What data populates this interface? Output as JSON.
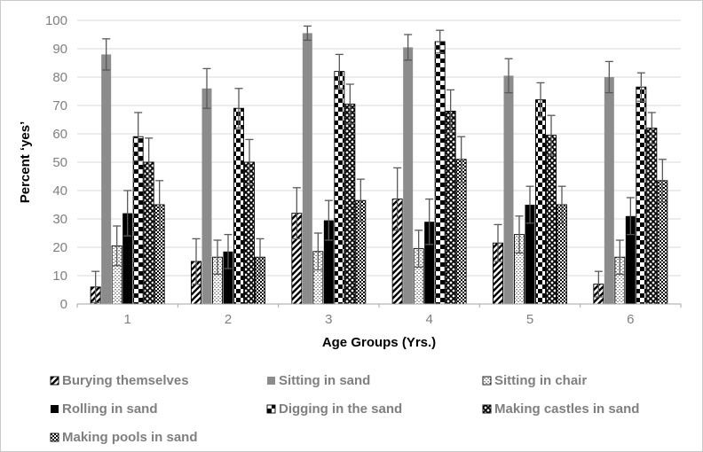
{
  "chart_data": {
    "type": "bar",
    "title": "",
    "xlabel": "Age Groups (Yrs.)",
    "ylabel": "Percent ‘yes’",
    "ylim": [
      0,
      100
    ],
    "yticks": [
      0,
      10,
      20,
      30,
      40,
      50,
      60,
      70,
      80,
      90,
      100
    ],
    "categories": [
      "1",
      "2",
      "3",
      "4",
      "5",
      "6"
    ],
    "grid": true,
    "error_bars": true,
    "legend_position": "bottom",
    "legend_columns": 3,
    "series": [
      {
        "name": "Burying themselves",
        "pattern": "wide-upward-diagonal",
        "values": [
          6,
          15,
          32,
          37,
          21.5,
          7
        ],
        "errors": [
          5.5,
          8,
          9,
          11,
          6.5,
          4.5
        ]
      },
      {
        "name": "Sitting in sand",
        "pattern": "solid",
        "color": "#8c8c8c",
        "values": [
          88,
          76,
          95.5,
          90.5,
          80.5,
          80
        ],
        "errors": [
          5.5,
          7,
          2.5,
          4.5,
          6,
          5.5
        ]
      },
      {
        "name": "Sitting in chair",
        "pattern": "sparse-dots",
        "values": [
          20.5,
          16.5,
          18.5,
          19.5,
          24.5,
          16.5
        ],
        "errors": [
          7,
          6,
          6.5,
          6.5,
          6.5,
          6
        ]
      },
      {
        "name": "Rolling in sand",
        "pattern": "solid",
        "color": "#000000",
        "values": [
          32,
          18.5,
          29.5,
          29,
          35,
          31
        ],
        "errors": [
          8,
          6,
          7,
          8,
          6.5,
          6.5
        ]
      },
      {
        "name": "Digging in the sand",
        "pattern": "checkerboard",
        "values": [
          59,
          69,
          82,
          92.5,
          72,
          76.5
        ],
        "errors": [
          8.5,
          7,
          6,
          4,
          6,
          5
        ]
      },
      {
        "name": "Making castles in sand",
        "pattern": "diagonal-crosshatch",
        "values": [
          50,
          50,
          70.5,
          68,
          59.5,
          62
        ],
        "errors": [
          8.5,
          8,
          7,
          7.5,
          7,
          5.5
        ]
      },
      {
        "name": "Making pools in  sand",
        "pattern": "small-checkerboard",
        "values": [
          35,
          16.5,
          36.5,
          51,
          35,
          43.5
        ],
        "errors": [
          8.5,
          6.5,
          7.5,
          8,
          6.5,
          7.5
        ]
      }
    ],
    "colors": {
      "bar_gray": "#8c8c8c",
      "bar_black": "#000000",
      "error_bar": "#595959",
      "gridline": "#d9d9d9",
      "axis_line": "#a6a6a6",
      "tick_label": "#7f7f7f",
      "legend_text": "#7f7f7f",
      "axis_title": "#000000",
      "frame_border": "#c9c9c9"
    }
  }
}
